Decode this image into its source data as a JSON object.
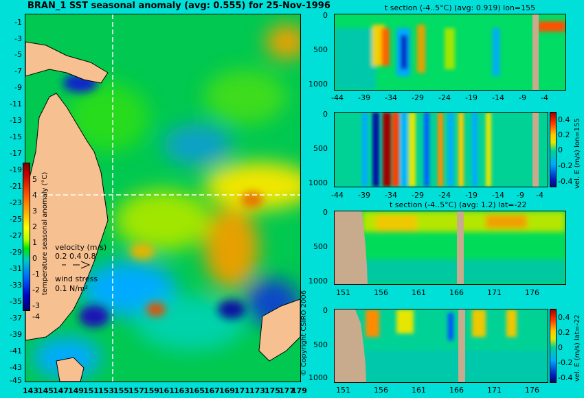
{
  "main_map": {
    "title": "BRAN_1 SST seasonal anomaly (avg: 0.555) for 25-Nov-1996",
    "lat_ticks": [
      "-1",
      "-3",
      "-5",
      "-7",
      "-9",
      "-11",
      "-13",
      "-15",
      "-17",
      "-19",
      "-21",
      "-23",
      "-25",
      "-27",
      "-29",
      "-31",
      "-33",
      "-35",
      "-37",
      "-39",
      "-41",
      "-43",
      "-45"
    ],
    "lon_ticks": [
      "143",
      "145",
      "147",
      "149",
      "151",
      "153",
      "155",
      "157",
      "159",
      "161",
      "163",
      "165",
      "167",
      "169",
      "171",
      "173",
      "175",
      "177",
      "179"
    ],
    "colorbar": {
      "label": "temperature seasonal anomaly (°C)",
      "ticks": [
        "5",
        "4",
        "3",
        "2",
        "1",
        "0",
        "-1",
        "-2",
        "-3",
        "-4"
      ]
    },
    "velocity_legend": {
      "title": "velocity (m/s)",
      "scale": "0.2 0.4 0.8"
    },
    "wind_legend": {
      "title": "wind stress",
      "scale": "0.1 N/m²"
    },
    "copyright": "© Copyright CSIRO 2006"
  },
  "panels": [
    {
      "title": "t section (-4..5°C) (avg: 0.919) lon=155",
      "y_ticks": [
        "0",
        "500",
        "1000"
      ],
      "x_ticks": [
        "-44",
        "-39",
        "-34",
        "-29",
        "-24",
        "-19",
        "-14",
        "-9",
        "-4"
      ]
    },
    {
      "title": "",
      "side_label": "vel. E (m/s) lon=155",
      "y_ticks": [
        "0",
        "500",
        "1000"
      ],
      "x_ticks": [
        "-44",
        "-39",
        "-34",
        "-29",
        "-24",
        "-19",
        "-14",
        "-9",
        "-4"
      ],
      "colorbar_ticks": [
        "0.4",
        "0.2",
        "0",
        "-0.2",
        "-0.4"
      ]
    },
    {
      "title": "t section (-4..5°C) (avg: 1.2) lat=-22",
      "y_ticks": [
        "0",
        "500",
        "1000"
      ],
      "x_ticks": [
        "151",
        "156",
        "161",
        "166",
        "171",
        "176"
      ]
    },
    {
      "title": "",
      "side_label": "vel. E (m/s) lat=-22",
      "y_ticks": [
        "0",
        "500",
        "1000"
      ],
      "x_ticks": [
        "151",
        "156",
        "161",
        "166",
        "171",
        "176"
      ],
      "colorbar_ticks": [
        "0.4",
        "0.2",
        "0",
        "-0.2",
        "-0.4"
      ]
    }
  ],
  "chart_data": [
    {
      "type": "heatmap",
      "title": "BRAN_1 SST seasonal anomaly (avg: 0.555) for 25-Nov-1996",
      "x_range": [
        143,
        179
      ],
      "y_range": [
        -45,
        -1
      ],
      "color_range": [
        -4,
        5
      ],
      "crosshair": {
        "lon": 155,
        "lat": -22
      }
    },
    {
      "type": "heatmap",
      "title": "t section (-4..5°C) (avg: 0.919) lon=155",
      "x_range": [
        -44,
        -1
      ],
      "y_range": [
        0,
        1000
      ]
    },
    {
      "type": "heatmap",
      "title": "",
      "x_range": [
        -44,
        -1
      ],
      "y_range": [
        0,
        1000
      ],
      "color_range": [
        -0.4,
        0.4
      ]
    },
    {
      "type": "heatmap",
      "title": "t section (-4..5°C) (avg: 1.2) lat=-22",
      "x_range": [
        151,
        179
      ],
      "y_range": [
        0,
        1000
      ]
    },
    {
      "type": "heatmap",
      "title": "",
      "x_range": [
        151,
        179
      ],
      "y_range": [
        0,
        1000
      ],
      "color_range": [
        -0.4,
        0.4
      ]
    }
  ]
}
